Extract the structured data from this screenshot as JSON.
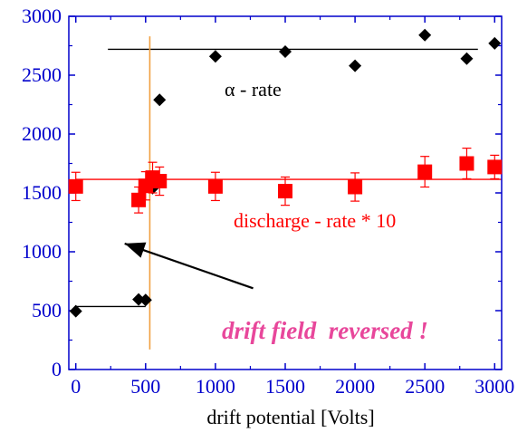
{
  "chart_data": {
    "type": "scatter",
    "xlabel": "drift potential [Volts]",
    "ylabel": "",
    "xlim": [
      -50,
      3050
    ],
    "ylim": [
      0,
      3000
    ],
    "x_ticks": [
      0,
      500,
      1000,
      1500,
      2000,
      2500,
      3000
    ],
    "y_ticks": [
      0,
      500,
      1000,
      1500,
      2000,
      2500,
      3000
    ],
    "grid": false,
    "series": [
      {
        "name": "α - rate",
        "marker": "diamond",
        "color": "#000000",
        "x": [
          0,
          450,
          500,
          550,
          600,
          1000,
          1500,
          2000,
          2500,
          2800,
          3000
        ],
        "y": [
          495,
          595,
          590,
          1540,
          2290,
          2660,
          2700,
          2580,
          2840,
          2640,
          2770
        ]
      },
      {
        "name": "discharge - rate * 10",
        "marker": "square",
        "color": "#ff0000",
        "x": [
          0,
          450,
          500,
          550,
          600,
          1000,
          1500,
          2000,
          2500,
          2800,
          3000
        ],
        "y": [
          1555,
          1440,
          1560,
          1630,
          1600,
          1555,
          1515,
          1550,
          1680,
          1750,
          1720
        ],
        "errors": [
          120,
          110,
          120,
          130,
          120,
          120,
          120,
          120,
          130,
          130,
          100
        ]
      }
    ],
    "lines": [
      {
        "role": "alpha-level-low",
        "x": [
          0,
          500
        ],
        "y": [
          535,
          535
        ],
        "color": "#000000"
      },
      {
        "role": "alpha-level-high",
        "x": [
          230,
          2880
        ],
        "y": [
          2720,
          2720
        ],
        "color": "#000000"
      },
      {
        "role": "discharge-level",
        "x": [
          0,
          3050
        ],
        "y": [
          1615,
          1615
        ],
        "color": "#ff0000"
      },
      {
        "role": "reversal-marker",
        "x": [
          530,
          530
        ],
        "y": [
          170,
          2830
        ],
        "color": "#f0a040"
      }
    ],
    "annotations": [
      {
        "text": "α - rate",
        "color": "#000000"
      },
      {
        "text": "discharge - rate * 10",
        "color": "#ff0000"
      },
      {
        "text": "drift field  reversed !",
        "color": "#e8479b"
      }
    ],
    "arrow": {
      "from": [
        1270,
        690
      ],
      "to": [
        350,
        1070
      ]
    }
  }
}
